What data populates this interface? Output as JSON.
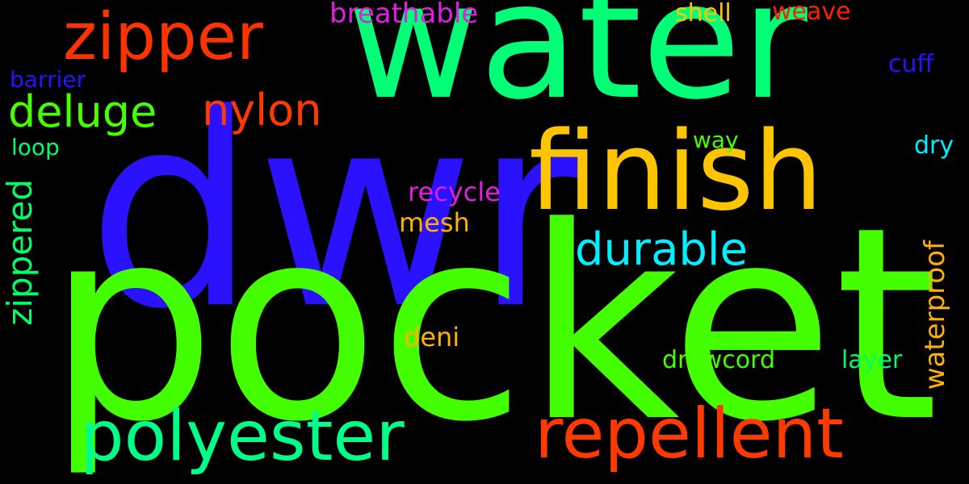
{
  "background": "#000000",
  "words": [
    {
      "id": "pocket",
      "text": "pocket",
      "color": "#44ff00"
    },
    {
      "id": "dwr",
      "text": "dwr",
      "color": "#2a12ff"
    },
    {
      "id": "water",
      "text": "water",
      "color": "#00ff77"
    },
    {
      "id": "finish",
      "text": "finish",
      "color": "#ffc400"
    },
    {
      "id": "repellent",
      "text": "repellent",
      "color": "#ff3a00"
    },
    {
      "id": "polyester",
      "text": "polyester",
      "color": "#00ff88"
    },
    {
      "id": "zipper",
      "text": "zipper",
      "color": "#ff3300"
    },
    {
      "id": "durable",
      "text": "durable",
      "color": "#00f0ff"
    },
    {
      "id": "nylon",
      "text": "nylon",
      "color": "#ff3a00"
    },
    {
      "id": "deluge",
      "text": "deluge",
      "color": "#44ff00"
    },
    {
      "id": "zippered",
      "text": "zippered",
      "color": "#00ff66"
    },
    {
      "id": "waterproof",
      "text": "waterproof",
      "color": "#ffb000"
    },
    {
      "id": "breathable",
      "text": "breathable",
      "color": "#e020e0"
    },
    {
      "id": "recycle",
      "text": "recycle",
      "color": "#e020e0"
    },
    {
      "id": "mesh",
      "text": "mesh",
      "color": "#ffb000"
    },
    {
      "id": "drawcord",
      "text": "drawcord",
      "color": "#44ff00"
    },
    {
      "id": "layer",
      "text": "layer",
      "color": "#00ff66"
    },
    {
      "id": "deni",
      "text": "deni",
      "color": "#ffb000"
    },
    {
      "id": "barrier",
      "text": "barrier",
      "color": "#2a12ff"
    },
    {
      "id": "loop",
      "text": "loop",
      "color": "#00ff66"
    },
    {
      "id": "shell",
      "text": "shell",
      "color": "#ffc400"
    },
    {
      "id": "weave",
      "text": "weave",
      "color": "#ff2000"
    },
    {
      "id": "cuff",
      "text": "cuff",
      "color": "#2a12ff"
    },
    {
      "id": "dry",
      "text": "dry",
      "color": "#00f0ff"
    },
    {
      "id": "way",
      "text": "way",
      "color": "#44ff00"
    }
  ]
}
